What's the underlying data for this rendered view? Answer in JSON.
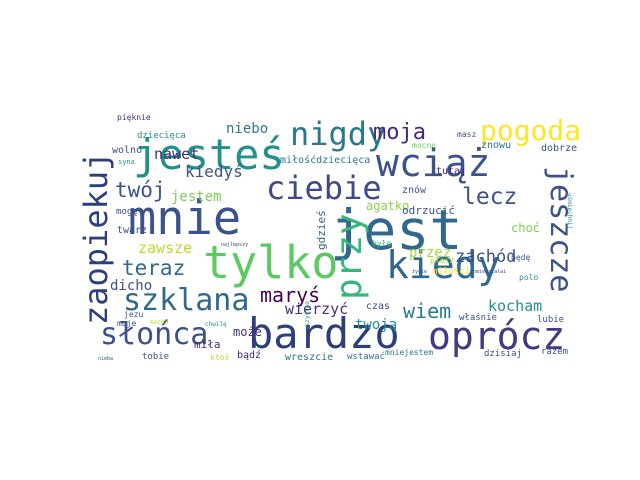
{
  "palette": {
    "deep_purple": "#440154",
    "indigo": "#3b528b",
    "blue": "#31688e",
    "teal": "#21918c",
    "green": "#35b779",
    "lime": "#90d743",
    "yellow": "#fde725",
    "dark_blue": "#2c3e7c"
  },
  "words": [
    {
      "text": "mnie",
      "color": "#3b528b"
    },
    {
      "text": "jest",
      "color": "#31688e"
    },
    {
      "text": "tylko",
      "color": "#5ec962"
    },
    {
      "text": "jesteś",
      "color": "#21918c"
    },
    {
      "text": "wciąż",
      "color": "#3b528b"
    },
    {
      "text": "bardzo",
      "color": "#2c3e7c"
    },
    {
      "text": "oprócz",
      "color": "#443a83"
    },
    {
      "text": "kiedy",
      "color": "#31688e"
    },
    {
      "text": "zaopiekuj",
      "color": "#2c3e7c"
    },
    {
      "text": "jeszcze",
      "color": "#3b528b"
    },
    {
      "text": "nigdy",
      "color": "#2a788e"
    },
    {
      "text": "ciebie",
      "color": "#3e4989"
    },
    {
      "text": "słońca",
      "color": "#3b528b"
    },
    {
      "text": "szklana",
      "color": "#31688e"
    },
    {
      "text": "przy",
      "color": "#35b779"
    },
    {
      "text": "pogoda",
      "color": "#fde725"
    },
    {
      "text": "moja",
      "color": "#482878"
    },
    {
      "text": "lecz",
      "color": "#3b528b"
    },
    {
      "text": "twój",
      "color": "#3b528b"
    },
    {
      "text": "teraz",
      "color": "#31688e"
    },
    {
      "text": "maryś",
      "color": "#440154"
    },
    {
      "text": "wiem",
      "color": "#2a788e"
    },
    {
      "text": "kocham",
      "color": "#21918c"
    },
    {
      "text": "zachód",
      "color": "#3b528b"
    },
    {
      "text": "wierzyć",
      "color": "#472d7b"
    },
    {
      "text": "kiedyś",
      "color": "#3b528b"
    },
    {
      "text": "nawet",
      "color": "#482878"
    },
    {
      "text": "niebo",
      "color": "#2a788e"
    },
    {
      "text": "jestem",
      "color": "#7ad151"
    },
    {
      "text": "zawsze",
      "color": "#b5de2b"
    },
    {
      "text": "dicho",
      "color": "#3b528b"
    },
    {
      "text": "miła",
      "color": "#482878"
    },
    {
      "text": "może",
      "color": "#472d7b"
    },
    {
      "text": "twoją",
      "color": "#21918c"
    },
    {
      "text": "przez",
      "color": "#a0da39"
    },
    {
      "text": "agatko",
      "color": "#86d549"
    },
    {
      "text": "odrzucić",
      "color": "#3b528b"
    },
    {
      "text": "gdzieś",
      "color": "#31688e"
    },
    {
      "text": "choć",
      "color": "#7ad151"
    },
    {
      "text": "znów",
      "color": "#3b528b"
    },
    {
      "text": "miłośćdziecięca",
      "color": "#2a788e"
    },
    {
      "text": "tutaj",
      "color": "#482878"
    },
    {
      "text": "mocno",
      "color": "#6ece58"
    },
    {
      "text": "znowu",
      "color": "#2a788e"
    },
    {
      "text": "dobrze",
      "color": "#3b528b"
    },
    {
      "text": "dziecięca",
      "color": "#21918c"
    },
    {
      "text": "pięknie",
      "color": "#472d7b"
    },
    {
      "text": "wolno",
      "color": "#3b528b"
    },
    {
      "text": "syna",
      "color": "#21918c"
    },
    {
      "text": "mogę",
      "color": "#3b528b"
    },
    {
      "text": "twarz",
      "color": "#3b528b"
    },
    {
      "text": "jezu",
      "color": "#3b528b"
    },
    {
      "text": "moje",
      "color": "#3b528b"
    },
    {
      "text": "nieba",
      "color": "#3b528b"
    },
    {
      "text": "tobie",
      "color": "#3b528b"
    },
    {
      "text": "ktoś",
      "color": "#b5de2b"
    },
    {
      "text": "bądź",
      "color": "#482878"
    },
    {
      "text": "wreszcie",
      "color": "#2a788e"
    },
    {
      "text": "wstawać",
      "color": "#2a788e"
    },
    {
      "text": "mniejestem",
      "color": "#2a788e"
    },
    {
      "text": "dzisiaj",
      "color": "#3b528b"
    },
    {
      "text": "razem",
      "color": "#3b528b"
    },
    {
      "text": "lubie",
      "color": "#3b528b"
    },
    {
      "text": "właśnie",
      "color": "#3b528b"
    },
    {
      "text": "miłości",
      "color": "#fde725"
    },
    {
      "text": "będę",
      "color": "#3b528b"
    },
    {
      "text": "polo",
      "color": "#21918c"
    },
    {
      "text": "czas",
      "color": "#3b528b"
    },
    {
      "text": "było",
      "color": "#35b779"
    },
    {
      "text": "płacz",
      "color": "#b5de2b"
    },
    {
      "text": "masz",
      "color": "#3b528b"
    },
    {
      "text": "wszystko",
      "color": "#21918c"
    },
    {
      "text": "najlepszy",
      "color": "#3b528b"
    },
    {
      "text": "chwilę",
      "color": "#21918c"
    },
    {
      "text": "kocha",
      "color": "#b5de2b"
    },
    {
      "text": "uśmiechnij",
      "color": "#21918c"
    },
    {
      "text": "pomiedzialai",
      "color": "#3b528b"
    },
    {
      "text": "życie",
      "color": "#3b528b"
    }
  ]
}
